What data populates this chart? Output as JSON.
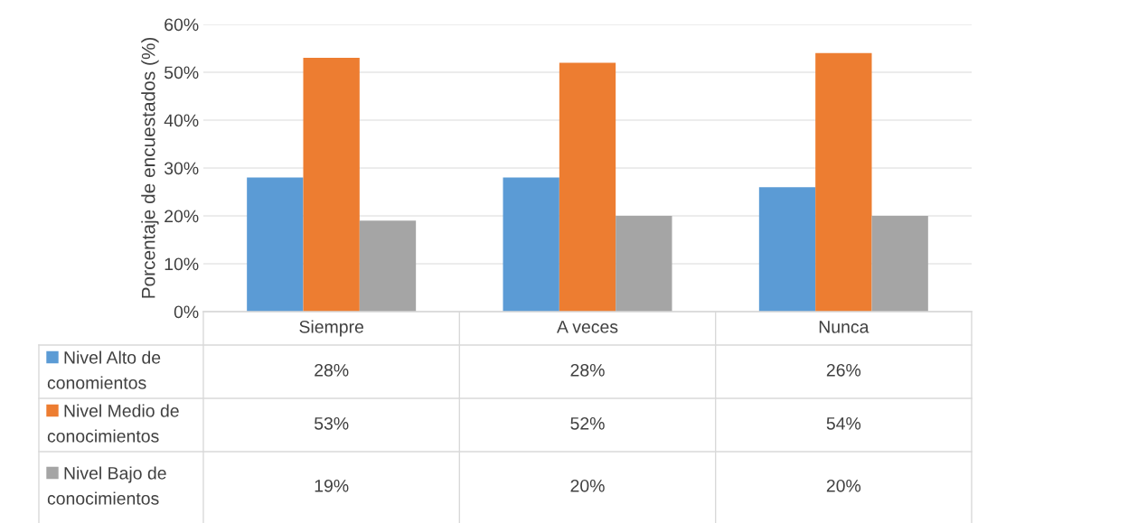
{
  "chart_data": {
    "type": "bar",
    "ylabel": "Porcentaje de encuestados (%)",
    "categories": [
      "Siempre",
      "A veces",
      "Nunca"
    ],
    "series": [
      {
        "name": "Nivel Alto de conomientos",
        "color": "#5b9bd5",
        "values": [
          28,
          28,
          26
        ],
        "value_labels": [
          "28%",
          "28%",
          "26%"
        ]
      },
      {
        "name": "Nivel Medio de conocimientos",
        "color": "#ed7d31",
        "values": [
          53,
          52,
          54
        ],
        "value_labels": [
          "53%",
          "52%",
          "54%"
        ]
      },
      {
        "name": "Nivel Bajo de conocimientos",
        "color": "#a5a5a5",
        "values": [
          19,
          20,
          20
        ],
        "value_labels": [
          "19%",
          "20%",
          "20%"
        ]
      }
    ],
    "ylim": [
      0,
      60
    ],
    "yticks": [
      {
        "value": 0,
        "label": "0%"
      },
      {
        "value": 10,
        "label": "10%"
      },
      {
        "value": 20,
        "label": "20%"
      },
      {
        "value": 30,
        "label": "30%"
      },
      {
        "value": 40,
        "label": "40%"
      },
      {
        "value": 50,
        "label": "50%"
      },
      {
        "value": 60,
        "label": "60%"
      }
    ],
    "grid": "y",
    "legend": "bottom"
  }
}
